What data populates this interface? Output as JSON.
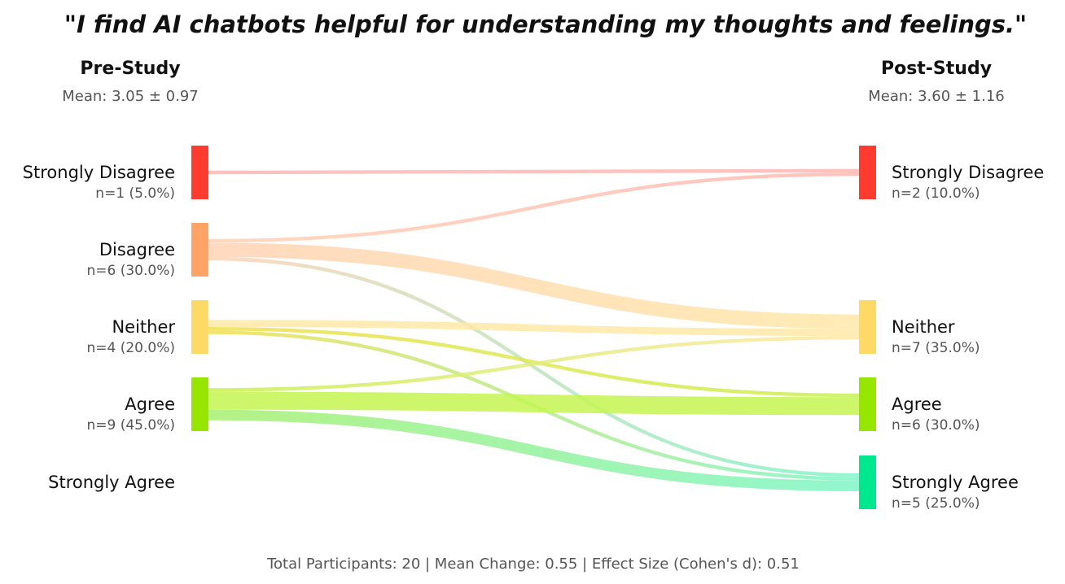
{
  "chart_data": {
    "type": "sankey",
    "title": "\"I find AI chatbots helpful for understanding my thoughts and feelings.\"",
    "left": {
      "heading": "Pre-Study",
      "stat": "Mean: 3.05 ± 0.97",
      "nodes": [
        {
          "label": "Strongly Disagree",
          "detail": "n=1 (5.0%)",
          "count": 1,
          "color": "#ff3b30"
        },
        {
          "label": "Disagree",
          "detail": "n=6 (30.0%)",
          "count": 6,
          "color": "#ffa466"
        },
        {
          "label": "Neither",
          "detail": "n=4 (20.0%)",
          "count": 4,
          "color": "#ffd966"
        },
        {
          "label": "Agree",
          "detail": "n=9 (45.0%)",
          "count": 9,
          "color": "#96e600"
        },
        {
          "label": "Strongly Agree",
          "detail": "",
          "count": 0,
          "color": "#00e88f"
        }
      ]
    },
    "right": {
      "heading": "Post-Study",
      "stat": "Mean: 3.60 ± 1.16",
      "nodes": [
        {
          "label": "Strongly Disagree",
          "detail": "n=2 (10.0%)",
          "count": 2,
          "color": "#ff3b30"
        },
        {
          "label": "Disagree",
          "detail": "",
          "count": 0,
          "color": "#ffa466"
        },
        {
          "label": "Neither",
          "detail": "n=7 (35.0%)",
          "count": 7,
          "color": "#ffd966"
        },
        {
          "label": "Agree",
          "detail": "n=6 (30.0%)",
          "count": 6,
          "color": "#96e600"
        },
        {
          "label": "Strongly Agree",
          "detail": "n=5 (25.0%)",
          "count": 5,
          "color": "#00e88f"
        }
      ]
    },
    "flows": [
      {
        "from": 0,
        "to": 0,
        "value": 1,
        "from_color": "#ffb8b3",
        "to_color": "#ffb8b3"
      },
      {
        "from": 1,
        "to": 0,
        "value": 1,
        "from_color": "#ffd2b5",
        "to_color": "#ffb8b3"
      },
      {
        "from": 1,
        "to": 2,
        "value": 4,
        "from_color": "#ffd2b5",
        "to_color": "#ffe8a8"
      },
      {
        "from": 1,
        "to": 4,
        "value": 1,
        "from_color": "#ffd2b5",
        "to_color": "#7ef5c8"
      },
      {
        "from": 2,
        "to": 2,
        "value": 2,
        "from_color": "#ffe8a8",
        "to_color": "#ffe8a8"
      },
      {
        "from": 2,
        "to": 3,
        "value": 1,
        "from_color": "#f0e050",
        "to_color": "#c8f050"
      },
      {
        "from": 2,
        "to": 4,
        "value": 1,
        "from_color": "#f0e050",
        "to_color": "#7ef5c8"
      },
      {
        "from": 3,
        "to": 2,
        "value": 1,
        "from_color": "#c8f050",
        "to_color": "#ffe8a8"
      },
      {
        "from": 3,
        "to": 3,
        "value": 5,
        "from_color": "#c4f550",
        "to_color": "#c4f550"
      },
      {
        "from": 3,
        "to": 4,
        "value": 3,
        "from_color": "#a8f070",
        "to_color": "#7ef5c8"
      }
    ],
    "footer": "Total Participants: 20 | Mean Change: 0.55 | Effect Size (Cohen's d): 0.51"
  }
}
